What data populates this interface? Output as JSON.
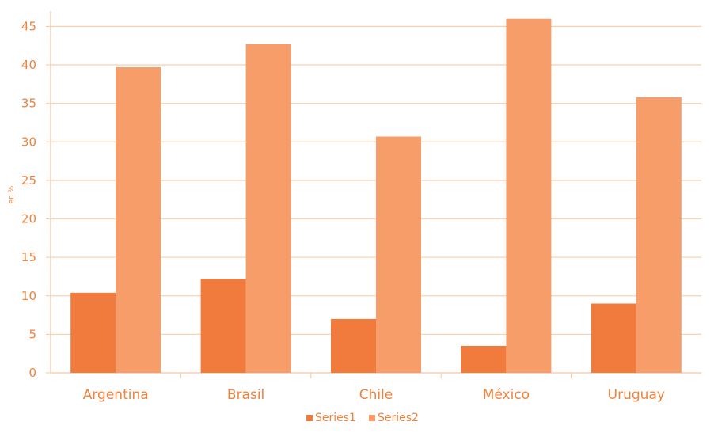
{
  "chart_data": {
    "type": "bar",
    "title": "",
    "xlabel": "",
    "ylabel": "en %",
    "categories": [
      "Argentina",
      "Brasil",
      "Chile",
      "México",
      "Uruguay"
    ],
    "series": [
      {
        "name": "Series1",
        "values": [
          10.4,
          12.2,
          7.0,
          3.5,
          9.0
        ],
        "color": "#f07b3c"
      },
      {
        "name": "Series2",
        "values": [
          39.7,
          42.7,
          30.7,
          46.0,
          35.8
        ],
        "color": "#f79d6a"
      }
    ],
    "ylim": [
      0,
      47
    ],
    "yticks": [
      "0",
      "5",
      "10",
      "15",
      "20",
      "25",
      "30",
      "35",
      "40",
      "45"
    ],
    "grid": true,
    "legend_position": "bottom",
    "colors": {
      "axis": "#f6c8a4",
      "grid": "#f8d3b4",
      "text": "#f0823c"
    }
  }
}
